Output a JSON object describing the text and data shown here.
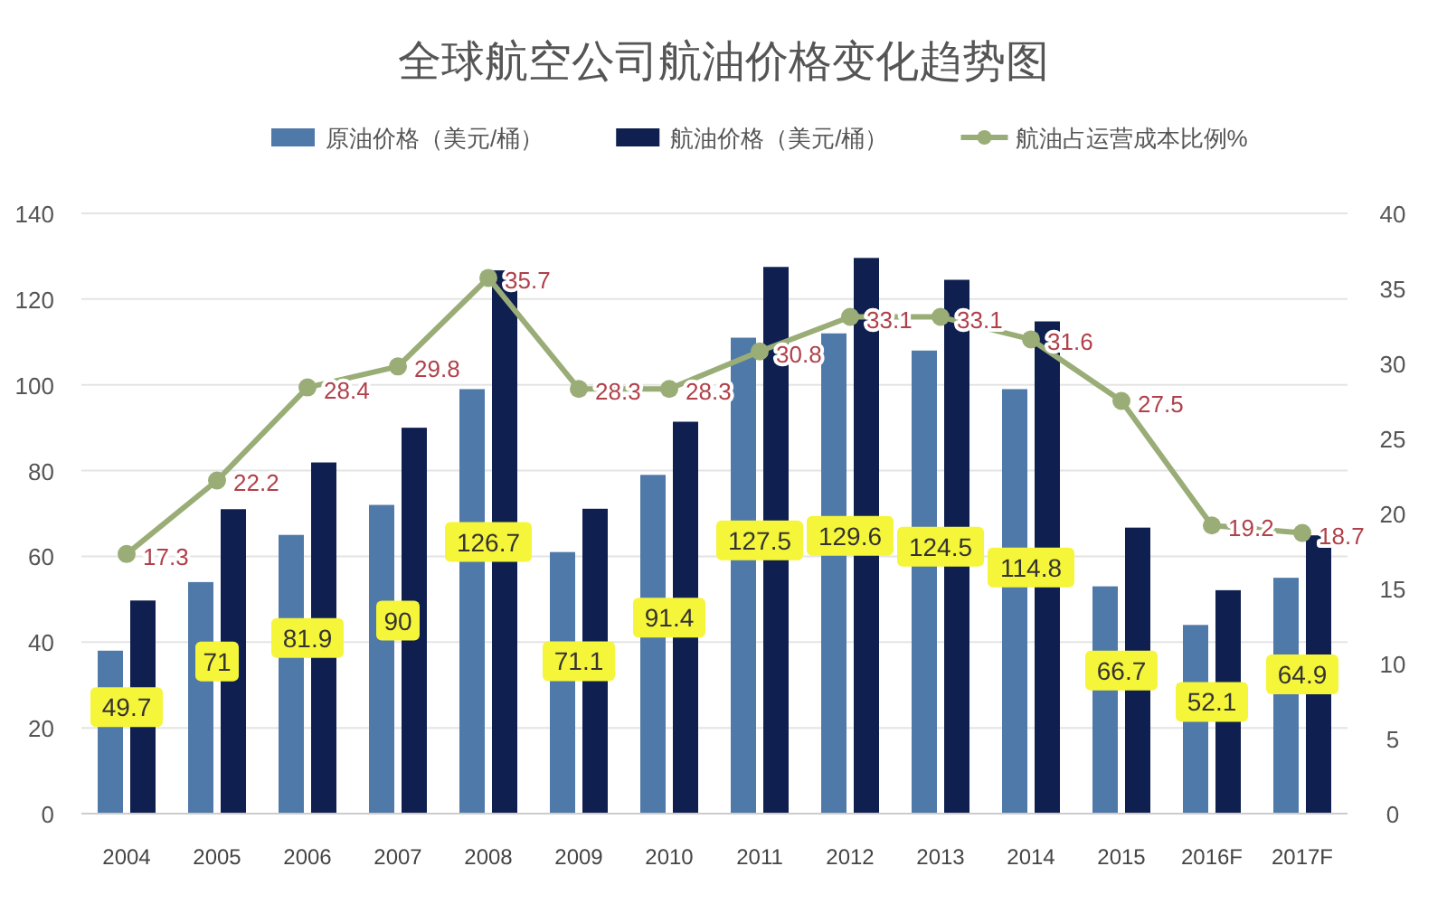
{
  "chart_data": {
    "type": "bar",
    "title": "全球航空公司航油价格变化趋势图",
    "categories": [
      "2004",
      "2005",
      "2006",
      "2007",
      "2008",
      "2009",
      "2010",
      "2011",
      "2012",
      "2013",
      "2014",
      "2015",
      "2016F",
      "2017F"
    ],
    "series": [
      {
        "name": "原油价格（美元/桶）",
        "color": "#4f79a8",
        "values": [
          38,
          54,
          65,
          72,
          99,
          61,
          79,
          111,
          112,
          108,
          99,
          53,
          44,
          55
        ]
      },
      {
        "name": "航油价格（美元/桶）",
        "color": "#0f1f4f",
        "values": [
          49.7,
          71,
          81.9,
          90,
          126.7,
          71.1,
          91.4,
          127.5,
          129.6,
          124.5,
          114.8,
          66.7,
          52.1,
          64.9
        ],
        "value_labels": [
          "49.7",
          "71",
          "81.9",
          "90",
          "126.7",
          "71.1",
          "91.4",
          "127.5",
          "129.6",
          "124.5",
          "114.8",
          "66.7",
          "52.1",
          "64.9"
        ]
      },
      {
        "name": "航油占运营成本比例%",
        "type": "line",
        "axis": "y2",
        "color": "#9aad77",
        "values": [
          17.3,
          22.2,
          28.4,
          29.8,
          35.7,
          28.3,
          28.3,
          30.8,
          33.1,
          33.1,
          31.6,
          27.5,
          19.2,
          18.7
        ],
        "value_labels": [
          "17.3",
          "22.2",
          "28.4",
          "29.8",
          "35.7",
          "28.3",
          "28.3",
          "30.8",
          "33.1",
          "33.1",
          "31.6",
          "27.5",
          "19.2",
          "18.7"
        ]
      }
    ],
    "ylim": [
      0,
      140
    ],
    "yticks": [
      0,
      20,
      40,
      60,
      80,
      100,
      120,
      140
    ],
    "y2lim": [
      0,
      40
    ],
    "y2ticks": [
      0,
      5,
      10,
      15,
      20,
      25,
      30,
      35,
      40
    ],
    "grid": "y",
    "legend": "top",
    "marker": "circle"
  }
}
